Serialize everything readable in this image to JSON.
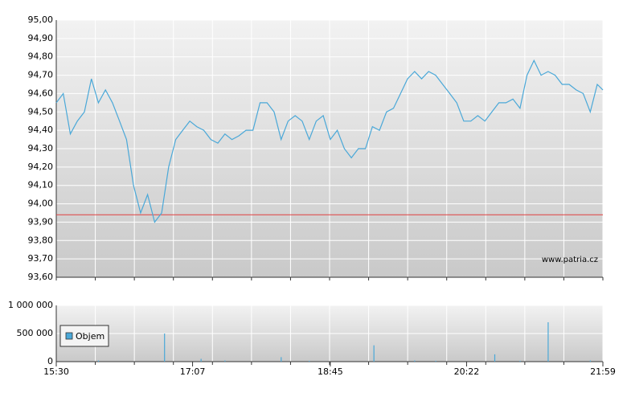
{
  "chart_data": [
    {
      "type": "line",
      "x": [
        "15:30",
        "15:35",
        "15:40",
        "15:45",
        "15:50",
        "15:55",
        "16:00",
        "16:05",
        "16:10",
        "16:15",
        "16:20",
        "16:25",
        "16:30",
        "16:35",
        "16:40",
        "16:45",
        "16:50",
        "16:55",
        "17:00",
        "17:05",
        "17:10",
        "17:15",
        "17:20",
        "17:25",
        "17:30",
        "17:35",
        "17:40",
        "17:45",
        "17:50",
        "17:55",
        "18:00",
        "18:05",
        "18:10",
        "18:15",
        "18:20",
        "18:25",
        "18:30",
        "18:35",
        "18:40",
        "18:45",
        "18:50",
        "18:55",
        "19:00",
        "19:05",
        "19:10",
        "19:15",
        "19:20",
        "19:25",
        "19:30",
        "19:35",
        "19:40",
        "19:45",
        "19:50",
        "19:55",
        "20:00",
        "20:05",
        "20:10",
        "20:15",
        "20:20",
        "20:25",
        "20:30",
        "20:35",
        "20:40",
        "20:45",
        "20:50",
        "20:55",
        "21:00",
        "21:05",
        "21:10",
        "21:15",
        "21:20",
        "21:25",
        "21:30",
        "21:35",
        "21:40",
        "21:45",
        "21:50",
        "21:55",
        "21:59"
      ],
      "values": [
        94.55,
        94.6,
        94.38,
        94.45,
        94.5,
        94.68,
        94.55,
        94.62,
        94.55,
        94.45,
        94.35,
        94.1,
        93.95,
        94.05,
        93.9,
        93.95,
        94.2,
        94.35,
        94.4,
        94.45,
        94.42,
        94.4,
        94.35,
        94.33,
        94.38,
        94.35,
        94.37,
        94.4,
        94.4,
        94.55,
        94.55,
        94.5,
        94.35,
        94.45,
        94.48,
        94.45,
        94.35,
        94.45,
        94.48,
        94.35,
        94.4,
        94.3,
        94.25,
        94.3,
        94.3,
        94.42,
        94.4,
        94.5,
        94.52,
        94.6,
        94.68,
        94.72,
        94.68,
        94.72,
        94.7,
        94.65,
        94.6,
        94.55,
        94.45,
        94.45,
        94.48,
        94.45,
        94.5,
        94.55,
        94.55,
        94.57,
        94.52,
        94.7,
        94.78,
        94.7,
        94.72,
        94.7,
        94.65,
        94.65,
        94.62,
        94.6,
        94.5,
        94.65,
        94.62
      ],
      "color": "#4aa8d8",
      "xlim": [
        "15:30",
        "21:59"
      ],
      "ylim": [
        93.6,
        95.0
      ],
      "yticks": [
        {
          "value": 93.6,
          "label": "93,60"
        },
        {
          "value": 93.7,
          "label": "93,70"
        },
        {
          "value": 93.8,
          "label": "93,80"
        },
        {
          "value": 93.9,
          "label": "93,90"
        },
        {
          "value": 94.0,
          "label": "94,00"
        },
        {
          "value": 94.1,
          "label": "94,10"
        },
        {
          "value": 94.2,
          "label": "94,20"
        },
        {
          "value": 94.3,
          "label": "94,30"
        },
        {
          "value": 94.4,
          "label": "94,40"
        },
        {
          "value": 94.5,
          "label": "94,50"
        },
        {
          "value": 94.6,
          "label": "94,60"
        },
        {
          "value": 94.7,
          "label": "94,70"
        },
        {
          "value": 94.8,
          "label": "94,80"
        },
        {
          "value": 94.9,
          "label": "94,90"
        },
        {
          "value": 95.0,
          "label": "95,00"
        }
      ],
      "reference_line": {
        "value": 93.94,
        "color": "#e04040"
      },
      "annotation": "www.patria.cz",
      "grid": true
    },
    {
      "type": "bar",
      "x": [
        "16:00",
        "16:47",
        "17:13",
        "17:30",
        "18:10",
        "18:30",
        "19:16",
        "19:45",
        "20:00",
        "20:42",
        "21:00",
        "21:20",
        "21:50"
      ],
      "series": [
        {
          "name": "Objem",
          "color": "#4aa8d8",
          "values": [
            20000,
            500000,
            50000,
            20000,
            80000,
            15000,
            290000,
            20000,
            15000,
            130000,
            15000,
            700000,
            20000
          ]
        }
      ],
      "xlim": [
        "15:30",
        "21:59"
      ],
      "xticks": [
        "15:30",
        "17:07",
        "18:45",
        "20:22",
        "21:59"
      ],
      "ylim": [
        0,
        1000000
      ],
      "yticks": [
        {
          "value": 0,
          "label": "0"
        },
        {
          "value": 500000,
          "label": "500 000"
        },
        {
          "value": 1000000,
          "label": "1 000 000"
        }
      ],
      "legend": "lower-left",
      "grid": true
    }
  ]
}
